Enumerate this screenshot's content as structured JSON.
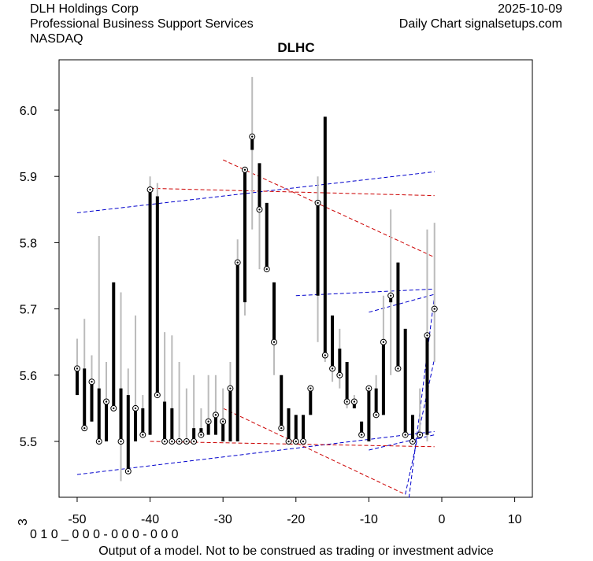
{
  "header": {
    "company": "DLH Holdings Corp",
    "sector": "Professional Business Support Services",
    "exchange": "NASDAQ",
    "date": "2025-10-09",
    "source": "Daily Chart signalsetups.com"
  },
  "footer": {
    "disclaimer": "Output of a model. Not to be construed as trading or investment advice",
    "code": "0 1 0 _ 0 0 0 - 0 0 0 - 0 0 0",
    "side_code": "3"
  },
  "chart_data": {
    "type": "ohlc",
    "title": "DLHC",
    "x": [
      -50,
      -49,
      -48,
      -47,
      -46,
      -45,
      -44,
      -43,
      -42,
      -41,
      -40,
      -39,
      -38,
      -37,
      -36,
      -35,
      -34,
      -33,
      -32,
      -31,
      -30,
      -29,
      -28,
      -27,
      -26,
      -25,
      -24,
      -23,
      -22,
      -21,
      -20,
      -19,
      -18,
      -17,
      -16,
      -15,
      -14,
      -13,
      -12,
      -11,
      -10,
      -9,
      -8,
      -7,
      -6,
      -5,
      -4,
      -3,
      -2,
      -1
    ],
    "open": [
      5.57,
      5.61,
      5.53,
      5.58,
      5.5,
      5.74,
      5.58,
      5.57,
      5.5,
      5.55,
      5.51,
      5.87,
      5.56,
      5.55,
      5.5,
      5.5,
      5.52,
      5.52,
      5.51,
      5.51,
      5.5,
      5.5,
      5.5,
      5.71,
      5.94,
      5.92,
      5.86,
      5.74,
      5.6,
      5.55,
      5.54,
      5.54,
      5.54,
      5.72,
      5.99,
      5.69,
      5.64,
      5.62,
      5.55,
      5.53,
      5.5,
      5.58,
      5.54,
      5.71,
      5.77,
      5.67,
      5.54,
      5.51,
      5.51,
      5.7
    ],
    "high": [
      5.655,
      5.685,
      5.63,
      5.81,
      5.62,
      5.74,
      5.725,
      5.61,
      5.69,
      5.57,
      5.9,
      5.89,
      5.665,
      5.66,
      5.62,
      5.58,
      5.6,
      5.55,
      5.6,
      5.6,
      5.58,
      5.62,
      5.805,
      5.91,
      6.05,
      5.92,
      5.86,
      5.74,
      5.6,
      5.55,
      5.54,
      5.54,
      5.58,
      5.9,
      5.99,
      5.69,
      5.67,
      5.62,
      5.57,
      5.53,
      5.58,
      5.6,
      5.72,
      5.85,
      5.77,
      5.67,
      5.54,
      5.58,
      5.82,
      5.83
    ],
    "low": [
      5.57,
      5.52,
      5.53,
      5.5,
      5.5,
      5.55,
      5.44,
      5.455,
      5.5,
      5.51,
      5.51,
      5.57,
      5.5,
      5.5,
      5.5,
      5.5,
      5.5,
      5.51,
      5.51,
      5.51,
      5.5,
      5.5,
      5.5,
      5.69,
      5.82,
      5.76,
      5.76,
      5.6,
      5.52,
      5.5,
      5.5,
      5.5,
      5.54,
      5.65,
      5.62,
      5.59,
      5.58,
      5.55,
      5.55,
      5.51,
      5.5,
      5.54,
      5.54,
      5.6,
      5.61,
      5.51,
      5.5,
      5.51,
      5.5,
      5.62
    ],
    "close": [
      5.61,
      5.52,
      5.59,
      5.5,
      5.56,
      5.55,
      5.5,
      5.455,
      5.55,
      5.51,
      5.88,
      5.57,
      5.5,
      5.5,
      5.5,
      5.5,
      5.5,
      5.51,
      5.53,
      5.54,
      5.53,
      5.58,
      5.77,
      5.91,
      5.96,
      5.85,
      5.76,
      5.65,
      5.52,
      5.5,
      5.5,
      5.5,
      5.58,
      5.86,
      5.63,
      5.61,
      5.6,
      5.56,
      5.56,
      5.51,
      5.58,
      5.54,
      5.65,
      5.72,
      5.61,
      5.51,
      5.5,
      5.51,
      5.66,
      5.7
    ],
    "trend_lines": [
      {
        "color": "#0000cc",
        "x": [
          -50,
          -1
        ],
        "y": [
          5.845,
          5.907
        ]
      },
      {
        "color": "#0000cc",
        "x": [
          -50,
          -1
        ],
        "y": [
          5.45,
          5.515
        ]
      },
      {
        "color": "#0000cc",
        "x": [
          -20,
          -1
        ],
        "y": [
          5.72,
          5.73
        ]
      },
      {
        "color": "#0000cc",
        "x": [
          -10,
          -1
        ],
        "y": [
          5.695,
          5.722
        ]
      },
      {
        "color": "#0000cc",
        "x": [
          -10,
          -1
        ],
        "y": [
          5.487,
          5.51
        ]
      },
      {
        "color": "#0000cc",
        "x": [
          -4.5,
          -1
        ],
        "y": [
          5.415,
          5.72
        ]
      },
      {
        "color": "#0000cc",
        "x": [
          -5,
          -1
        ],
        "y": [
          5.42,
          5.625
        ]
      },
      {
        "color": "#cc0000",
        "x": [
          -40,
          -1
        ],
        "y": [
          5.882,
          5.871
        ]
      },
      {
        "color": "#cc0000",
        "x": [
          -30,
          -1
        ],
        "y": [
          5.925,
          5.778
        ]
      },
      {
        "color": "#cc0000",
        "x": [
          -40,
          -1
        ],
        "y": [
          5.5,
          5.492
        ]
      },
      {
        "color": "#cc0000",
        "x": [
          -30,
          -5
        ],
        "y": [
          5.55,
          5.42
        ]
      }
    ],
    "range_color": "#bbbbbb",
    "body_color": "#000000",
    "xlim": [
      -52.48,
      12.42
    ],
    "ylim": [
      5.4157,
      6.076
    ],
    "xticks": [
      -50,
      -40,
      -30,
      -20,
      -10,
      0,
      10
    ],
    "yticks": [
      5.5,
      5.6,
      5.7,
      5.8,
      5.9,
      {
        "value": 6.0,
        "label": "6.0"
      }
    ]
  }
}
